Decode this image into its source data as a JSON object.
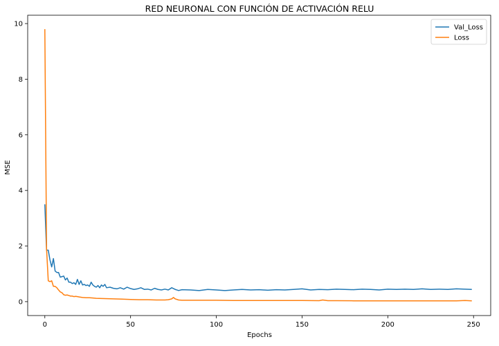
{
  "chart_data": {
    "type": "line",
    "title": "RED NEURONAL CON FUNCIÓN DE ACTIVACIÓN RELU",
    "xlabel": "Epochs",
    "ylabel": "MSE",
    "xlim": [
      -10,
      260
    ],
    "ylim": [
      -0.5,
      10.3
    ],
    "xticks": [
      0,
      50,
      100,
      150,
      200,
      250
    ],
    "yticks": [
      0,
      2,
      4,
      6,
      8,
      10
    ],
    "grid": false,
    "legend_position": "top-right",
    "series": [
      {
        "name": "Val_Loss",
        "color": "#1f77b4",
        "x": [
          0,
          1,
          2,
          3,
          4,
          5,
          6,
          7,
          8,
          9,
          10,
          11,
          12,
          13,
          14,
          15,
          16,
          17,
          18,
          19,
          20,
          21,
          22,
          23,
          24,
          25,
          26,
          27,
          28,
          29,
          30,
          31,
          32,
          33,
          34,
          35,
          36,
          38,
          40,
          42,
          44,
          46,
          48,
          50,
          52,
          54,
          56,
          58,
          60,
          62,
          64,
          66,
          68,
          70,
          72,
          74,
          76,
          78,
          80,
          85,
          90,
          95,
          100,
          105,
          110,
          115,
          120,
          125,
          130,
          135,
          140,
          145,
          150,
          155,
          160,
          165,
          170,
          175,
          180,
          185,
          190,
          195,
          200,
          205,
          210,
          215,
          220,
          225,
          230,
          235,
          240,
          245,
          249
        ],
        "y": [
          3.5,
          1.85,
          1.85,
          1.5,
          1.25,
          1.55,
          1.1,
          1.05,
          1.05,
          0.88,
          0.9,
          0.92,
          0.78,
          0.85,
          0.7,
          0.7,
          0.65,
          0.68,
          0.62,
          0.8,
          0.62,
          0.75,
          0.6,
          0.62,
          0.58,
          0.6,
          0.55,
          0.7,
          0.6,
          0.55,
          0.52,
          0.58,
          0.5,
          0.6,
          0.55,
          0.62,
          0.5,
          0.52,
          0.48,
          0.46,
          0.5,
          0.45,
          0.52,
          0.47,
          0.44,
          0.46,
          0.5,
          0.44,
          0.45,
          0.42,
          0.48,
          0.44,
          0.42,
          0.45,
          0.42,
          0.5,
          0.44,
          0.4,
          0.43,
          0.42,
          0.4,
          0.44,
          0.42,
          0.4,
          0.42,
          0.44,
          0.42,
          0.43,
          0.41,
          0.43,
          0.42,
          0.44,
          0.46,
          0.42,
          0.44,
          0.43,
          0.45,
          0.44,
          0.43,
          0.45,
          0.44,
          0.42,
          0.45,
          0.44,
          0.45,
          0.44,
          0.46,
          0.44,
          0.45,
          0.44,
          0.46,
          0.45,
          0.44
        ]
      },
      {
        "name": "Loss",
        "color": "#ff7f0e",
        "x": [
          0,
          1,
          2,
          3,
          4,
          5,
          6,
          7,
          8,
          9,
          10,
          11,
          12,
          13,
          14,
          15,
          16,
          17,
          18,
          19,
          20,
          22,
          24,
          26,
          28,
          30,
          35,
          40,
          45,
          50,
          55,
          60,
          65,
          70,
          72,
          74,
          75,
          76,
          78,
          80,
          90,
          100,
          110,
          120,
          130,
          140,
          150,
          160,
          162,
          165,
          170,
          180,
          190,
          200,
          210,
          220,
          230,
          240,
          245,
          249
        ],
        "y": [
          9.8,
          1.9,
          0.75,
          0.72,
          0.75,
          0.55,
          0.55,
          0.5,
          0.42,
          0.35,
          0.32,
          0.25,
          0.23,
          0.24,
          0.22,
          0.2,
          0.2,
          0.18,
          0.19,
          0.18,
          0.17,
          0.15,
          0.14,
          0.14,
          0.13,
          0.12,
          0.11,
          0.1,
          0.09,
          0.08,
          0.07,
          0.07,
          0.06,
          0.06,
          0.07,
          0.1,
          0.15,
          0.1,
          0.06,
          0.05,
          0.05,
          0.05,
          0.04,
          0.04,
          0.04,
          0.04,
          0.04,
          0.035,
          0.06,
          0.035,
          0.035,
          0.03,
          0.03,
          0.03,
          0.03,
          0.03,
          0.03,
          0.03,
          0.04,
          0.03
        ]
      }
    ]
  }
}
